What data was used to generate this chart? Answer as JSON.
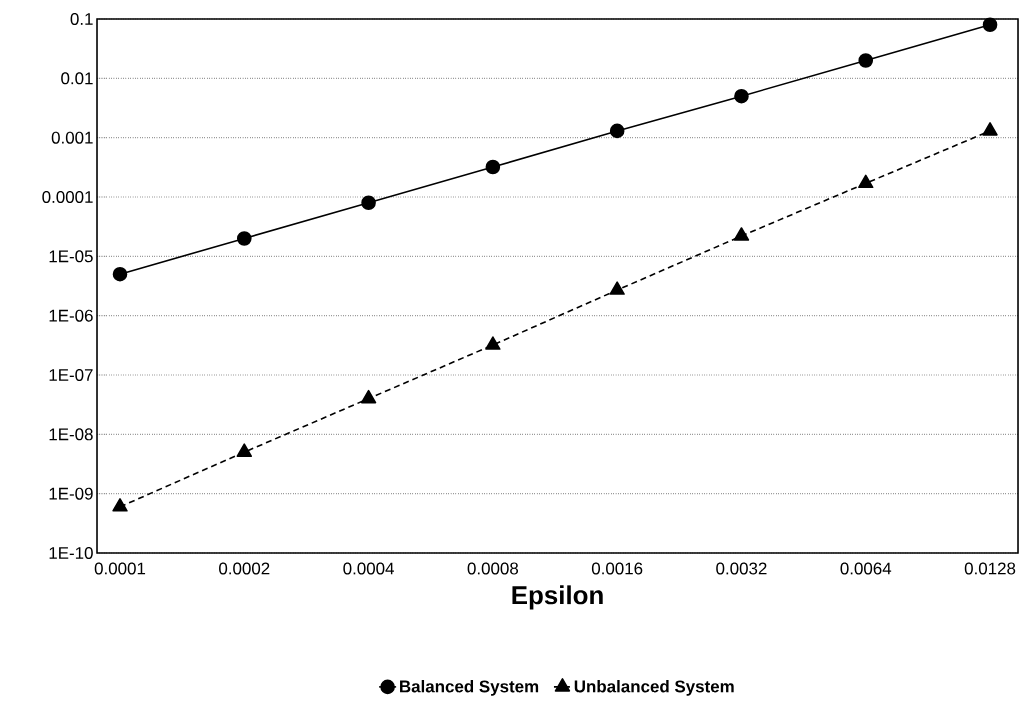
{
  "chart_data": {
    "type": "line",
    "xlabel": "Epsilon",
    "categories": [
      "0.0001",
      "0.0002",
      "0.0004",
      "0.0008",
      "0.0016",
      "0.0032",
      "0.0064",
      "0.0128"
    ],
    "series": [
      {
        "name": "Balanced System",
        "color": "#000000",
        "marker": "circle",
        "line_style": "solid",
        "values": [
          5e-06,
          2e-05,
          8e-05,
          0.00032,
          0.0013,
          0.005,
          0.02,
          0.08
        ]
      },
      {
        "name": "Unbalanced System",
        "color": "#000000",
        "marker": "triangle",
        "line_style": "dashed",
        "values": [
          6e-10,
          5e-09,
          4e-08,
          3.2e-07,
          2.7e-06,
          2.2e-05,
          0.00017,
          0.0013
        ]
      }
    ],
    "log": "y",
    "ylim": [
      1e-10,
      0.1
    ],
    "yticks": [
      {
        "value": 1e-10,
        "label": "1E-10"
      },
      {
        "value": 1e-09,
        "label": "1E-09"
      },
      {
        "value": 1e-08,
        "label": "1E-08"
      },
      {
        "value": 1e-07,
        "label": "1E-07"
      },
      {
        "value": 1e-06,
        "label": "1E-06"
      },
      {
        "value": 1e-05,
        "label": "1E-05"
      },
      0.0001,
      0.001,
      0.01,
      0.1
    ],
    "grid": "y",
    "legend": "bottom"
  }
}
